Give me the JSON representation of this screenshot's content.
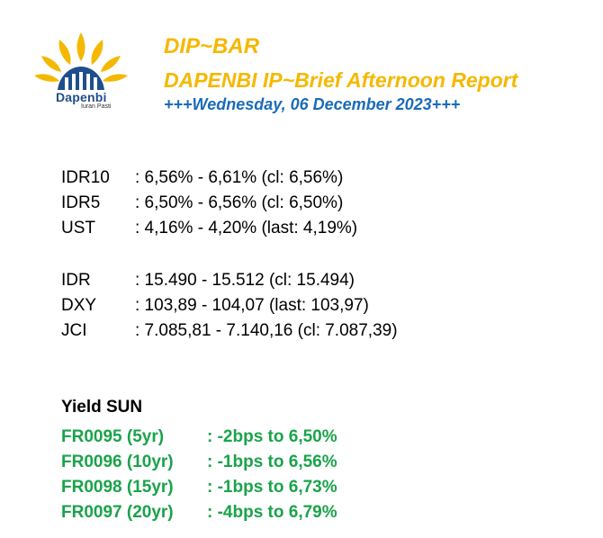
{
  "header": {
    "logo_name": "Dapenbi",
    "logo_tagline": "Iuran Pasti",
    "title": "DIP~BAR",
    "subtitle": "DAPENBI IP~Brief Afternoon Report",
    "date": "+++Wednesday, 06 December 2023+++"
  },
  "rates_1": [
    {
      "label": "IDR10",
      "value": ": 6,56% - 6,61% (cl: 6,56%)"
    },
    {
      "label": "IDR5",
      "value": ": 6,50% - 6,56% (cl: 6,50%)"
    },
    {
      "label": "UST",
      "value": ": 4,16% - 4,20% (last: 4,19%)"
    }
  ],
  "rates_2": [
    {
      "label": "IDR",
      "value": ": 15.490 - 15.512 (cl: 15.494)"
    },
    {
      "label": "DXY",
      "value": ": 103,89 - 104,07 (last: 103,97)"
    },
    {
      "label": "JCI",
      "value": ": 7.085,81 - 7.140,16 (cl: 7.087,39)"
    }
  ],
  "yield_sun": {
    "title": "Yield SUN",
    "items": [
      {
        "label": "FR0095 (5yr)",
        "value": ": -2bps to 6,50%"
      },
      {
        "label": "FR0096 (10yr)",
        "value": ": -1bps to 6,56%"
      },
      {
        "label": "FR0098 (15yr)",
        "value": ": -1bps to 6,73%"
      },
      {
        "label": "FR0097 (20yr)",
        "value": ": -4bps to 6,79%"
      }
    ]
  },
  "colors": {
    "title_yellow": "#f5b800",
    "date_blue": "#1a6bb8",
    "sun_green": "#1aa34a",
    "logo_blue": "#1f4e8c"
  }
}
